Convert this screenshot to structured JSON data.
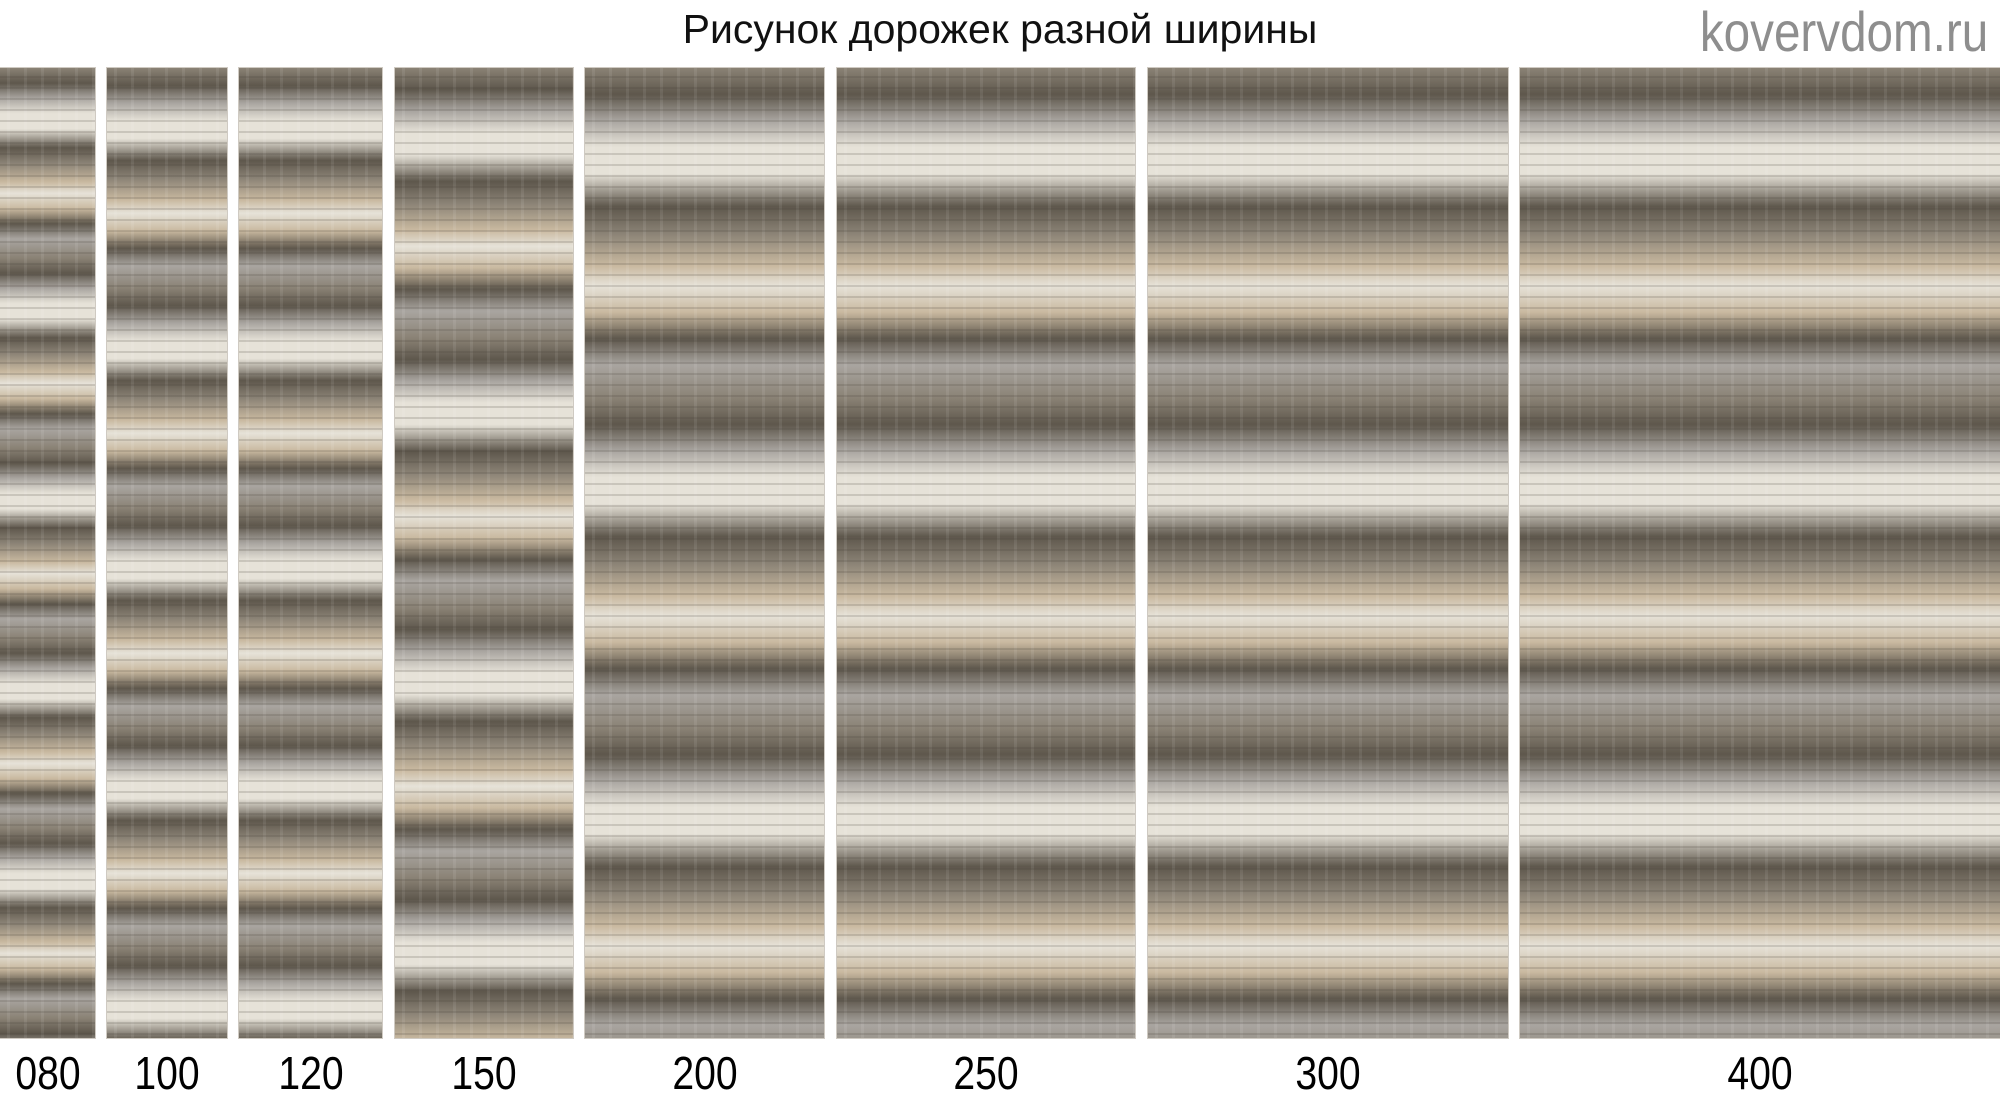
{
  "title": "Рисунок дорожек разной ширины",
  "runners": [
    {
      "label": "080"
    },
    {
      "label": "100"
    },
    {
      "label": "120"
    },
    {
      "label": "150"
    },
    {
      "label": "200"
    },
    {
      "label": "250"
    },
    {
      "label": "300"
    },
    {
      "label": "400"
    }
  ],
  "watermark": "kovervdom.ru",
  "colors": {
    "cream": "#e6e2d8",
    "beige": "#c9b9a0",
    "taupe": "#8a8275",
    "dark": "#5e574c",
    "grey": "#a9a5a0"
  }
}
